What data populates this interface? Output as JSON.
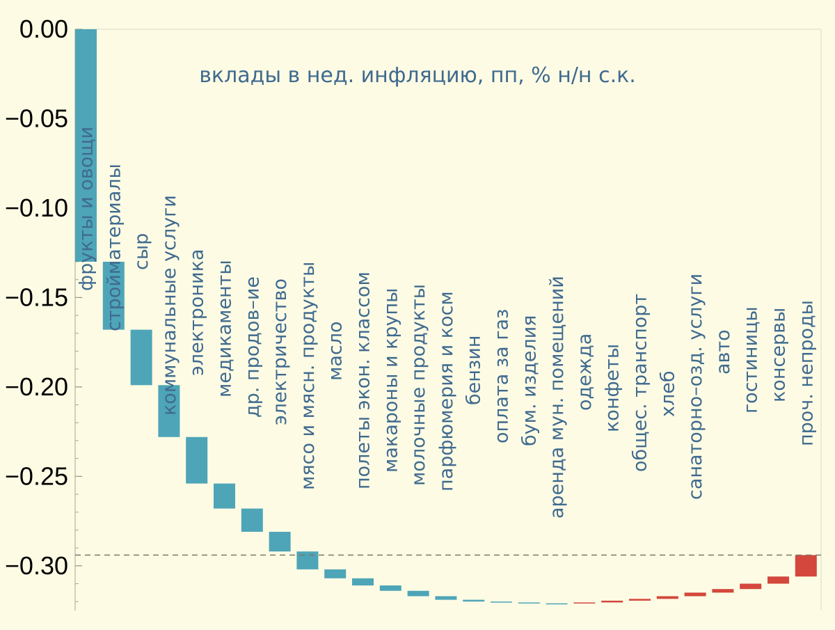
{
  "chart_data": {
    "type": "bar",
    "subtype": "waterfall",
    "title": "вклады в нед. инфляцию, пп, % н/н с.к.",
    "xlabel": "",
    "ylabel": "",
    "ylim": [
      -0.325,
      0.0
    ],
    "yticks": [
      0.0,
      -0.05,
      -0.1,
      -0.15,
      -0.2,
      -0.25,
      -0.3
    ],
    "ytick_labels": [
      "0.00",
      "−0.05",
      "−0.10",
      "−0.15",
      "−0.20",
      "−0.25",
      "−0.30"
    ],
    "grid": false,
    "reference_line": {
      "value": -0.294,
      "style": "dashed"
    },
    "categories": [
      "фрукты и овощи",
      "стройматериалы",
      "сыр",
      "коммунальные услуги",
      "электроника",
      "медикаменты",
      "др. продов–ие",
      "электричество",
      "мясо и мясн. продукты",
      "масло",
      "полеты экон. классом",
      "макароны и крупы",
      "молочные продукты",
      "парфюмерия и косм",
      "бензин",
      "оплата за газ",
      "бум. изделия",
      "аренда мун. помещений",
      "одежда",
      "конфеты",
      "общес. транспорт",
      "хлеб",
      "санаторно–озд. услуги",
      "авто",
      "гостиницы",
      "консервы",
      "проч. непроды"
    ],
    "values": [
      -0.13,
      -0.038,
      -0.031,
      -0.029,
      -0.026,
      -0.014,
      -0.013,
      -0.011,
      -0.01,
      -0.005,
      -0.004,
      -0.003,
      -0.003,
      -0.002,
      -0.001,
      -0.0005,
      -0.0005,
      0.0,
      0.0005,
      0.001,
      0.001,
      0.0015,
      0.002,
      0.002,
      0.003,
      0.004,
      0.012
    ],
    "colors": {
      "negative": "#4ea5b7",
      "positive": "#d4473c"
    }
  }
}
